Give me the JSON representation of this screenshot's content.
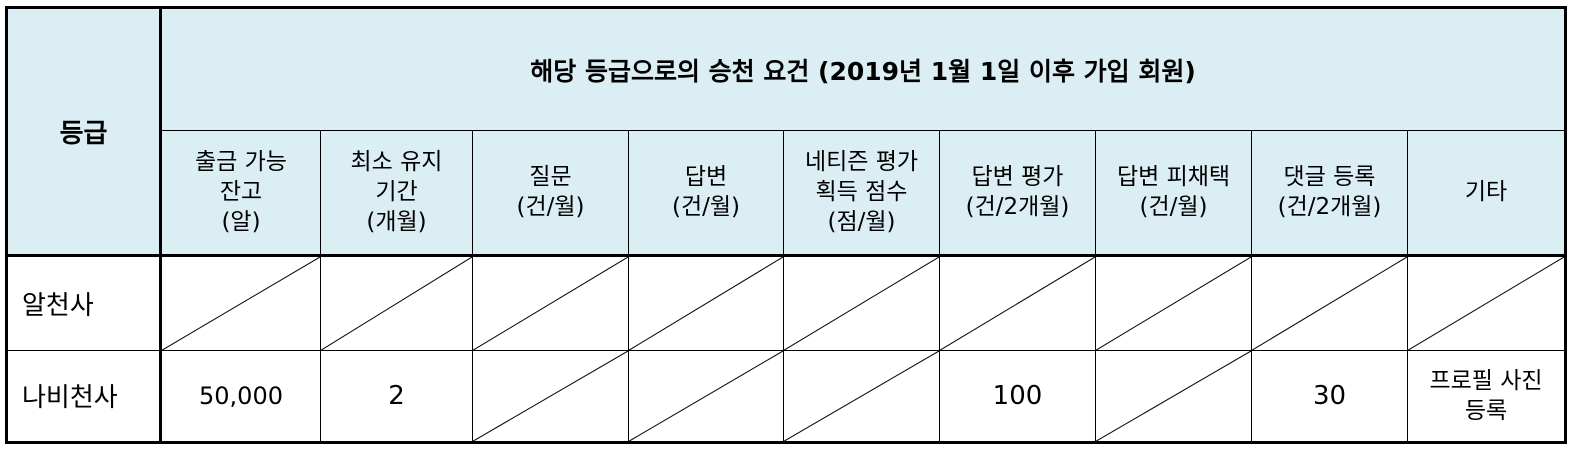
{
  "table": {
    "grade_header": "등급",
    "title": "해당 등급으로의 승천 요건 (2019년 1월 1일 이후 가입 회원)",
    "columns": [
      {
        "lines": [
          "출금 가능",
          "잔고",
          "(알)"
        ]
      },
      {
        "lines": [
          "최소 유지",
          "기간",
          "(개월)"
        ]
      },
      {
        "lines": [
          "질문",
          "(건/월)"
        ]
      },
      {
        "lines": [
          "답변",
          "(건/월)"
        ]
      },
      {
        "lines": [
          "네티즌 평가",
          "획득 점수",
          "(점/월)"
        ]
      },
      {
        "lines": [
          "답변 평가",
          "(건/2개월)"
        ]
      },
      {
        "lines": [
          "답변 피채택",
          "(건/월)"
        ]
      },
      {
        "lines": [
          "댓글 등록",
          "(건/2개월)"
        ]
      },
      {
        "lines": [
          "기타"
        ]
      }
    ],
    "rows": [
      {
        "label": "알천사",
        "cells": [
          "",
          "",
          "",
          "",
          "",
          "",
          "",
          "",
          ""
        ],
        "slashed": [
          true,
          true,
          true,
          true,
          true,
          true,
          true,
          true,
          true
        ]
      },
      {
        "label": "나비천사",
        "cells": [
          "50,000",
          "2",
          "",
          "",
          "",
          "100",
          "",
          "30",
          ""
        ],
        "slashed": [
          false,
          false,
          true,
          true,
          true,
          false,
          true,
          false,
          false
        ],
        "other_lines": [
          "프로필 사진",
          "등록"
        ]
      }
    ]
  }
}
